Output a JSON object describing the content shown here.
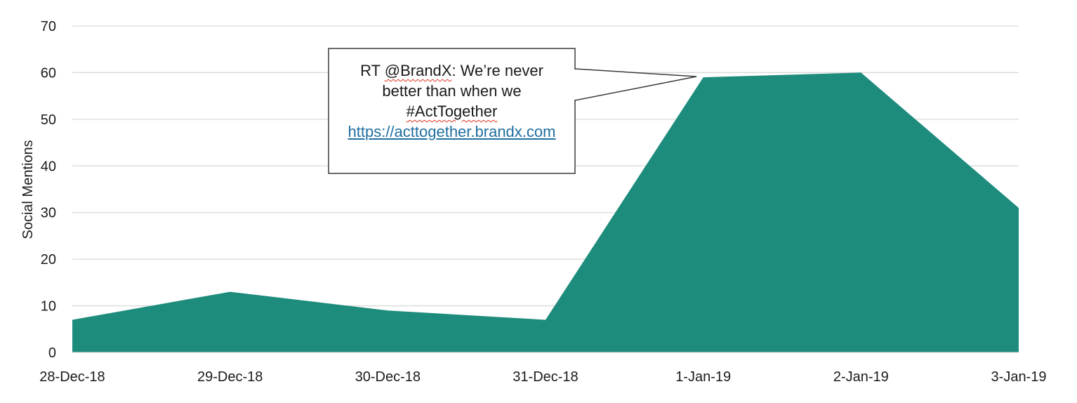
{
  "chart_data": {
    "type": "area",
    "title": "",
    "xlabel": "",
    "ylabel": "Social Mentions",
    "categories": [
      "28-Dec-18",
      "29-Dec-18",
      "30-Dec-18",
      "31-Dec-18",
      "1-Jan-19",
      "2-Jan-19",
      "3-Jan-19"
    ],
    "series": [
      {
        "values": [
          7,
          13,
          9,
          7,
          59,
          60,
          31
        ]
      }
    ],
    "ylim": [
      0,
      70
    ],
    "yticks": [
      0,
      10,
      20,
      30,
      40,
      50,
      60,
      70
    ],
    "grid": true,
    "legend": "none",
    "colors": {
      "area": "#1e8c7c",
      "grid": "#d9d9d9",
      "callout_border": "#3a3a3a",
      "link": "#1f6f9f",
      "spellcheck": "#e0301e"
    },
    "annotation": {
      "target_category": "1-Jan-19",
      "prefix": "RT ",
      "handle": "@BrandX",
      "text_line_1_rest": ": We’re never",
      "text_line_2": "better than when we",
      "hashtag": "#ActTogether",
      "link": "https://acttogether.brandx.com"
    }
  }
}
